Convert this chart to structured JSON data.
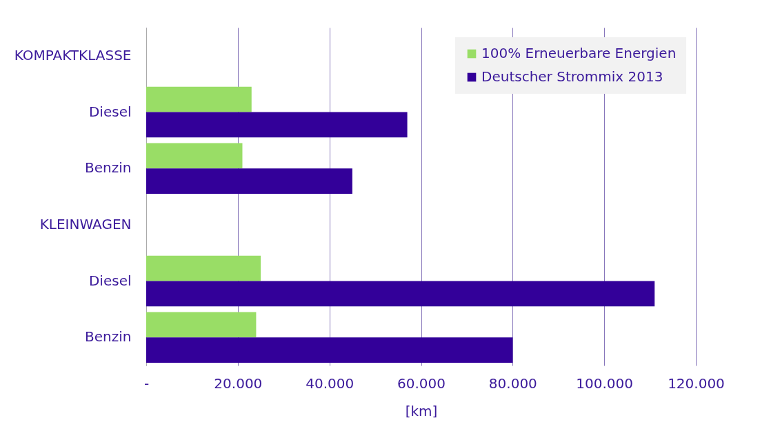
{
  "chart_data": {
    "type": "bar",
    "orientation": "horizontal",
    "xlabel": "[km]",
    "categories": [
      "KOMPAKTKLASSE",
      "Diesel",
      "Benzin",
      "KLEINWAGEN",
      "Diesel",
      "Benzin"
    ],
    "series": [
      {
        "name": "100% Erneuerbare Energien",
        "color": "#99dd66",
        "values": [
          null,
          23000,
          21000,
          null,
          25000,
          24000
        ]
      },
      {
        "name": "Deutscher Strommix 2013",
        "color": "#330099",
        "values": [
          null,
          57000,
          45000,
          null,
          111000,
          80000
        ]
      }
    ],
    "xlim": [
      0,
      120000
    ],
    "xticks": [
      {
        "value": 0,
        "label": "-"
      },
      {
        "value": 20000,
        "label": "20.000"
      },
      {
        "value": 40000,
        "label": "40.000"
      },
      {
        "value": 60000,
        "label": "60.000"
      },
      {
        "value": 80000,
        "label": "80.000"
      },
      {
        "value": 100000,
        "label": "100.000"
      },
      {
        "value": 120000,
        "label": "120.000"
      }
    ],
    "grid": "x",
    "legend": "top right"
  }
}
